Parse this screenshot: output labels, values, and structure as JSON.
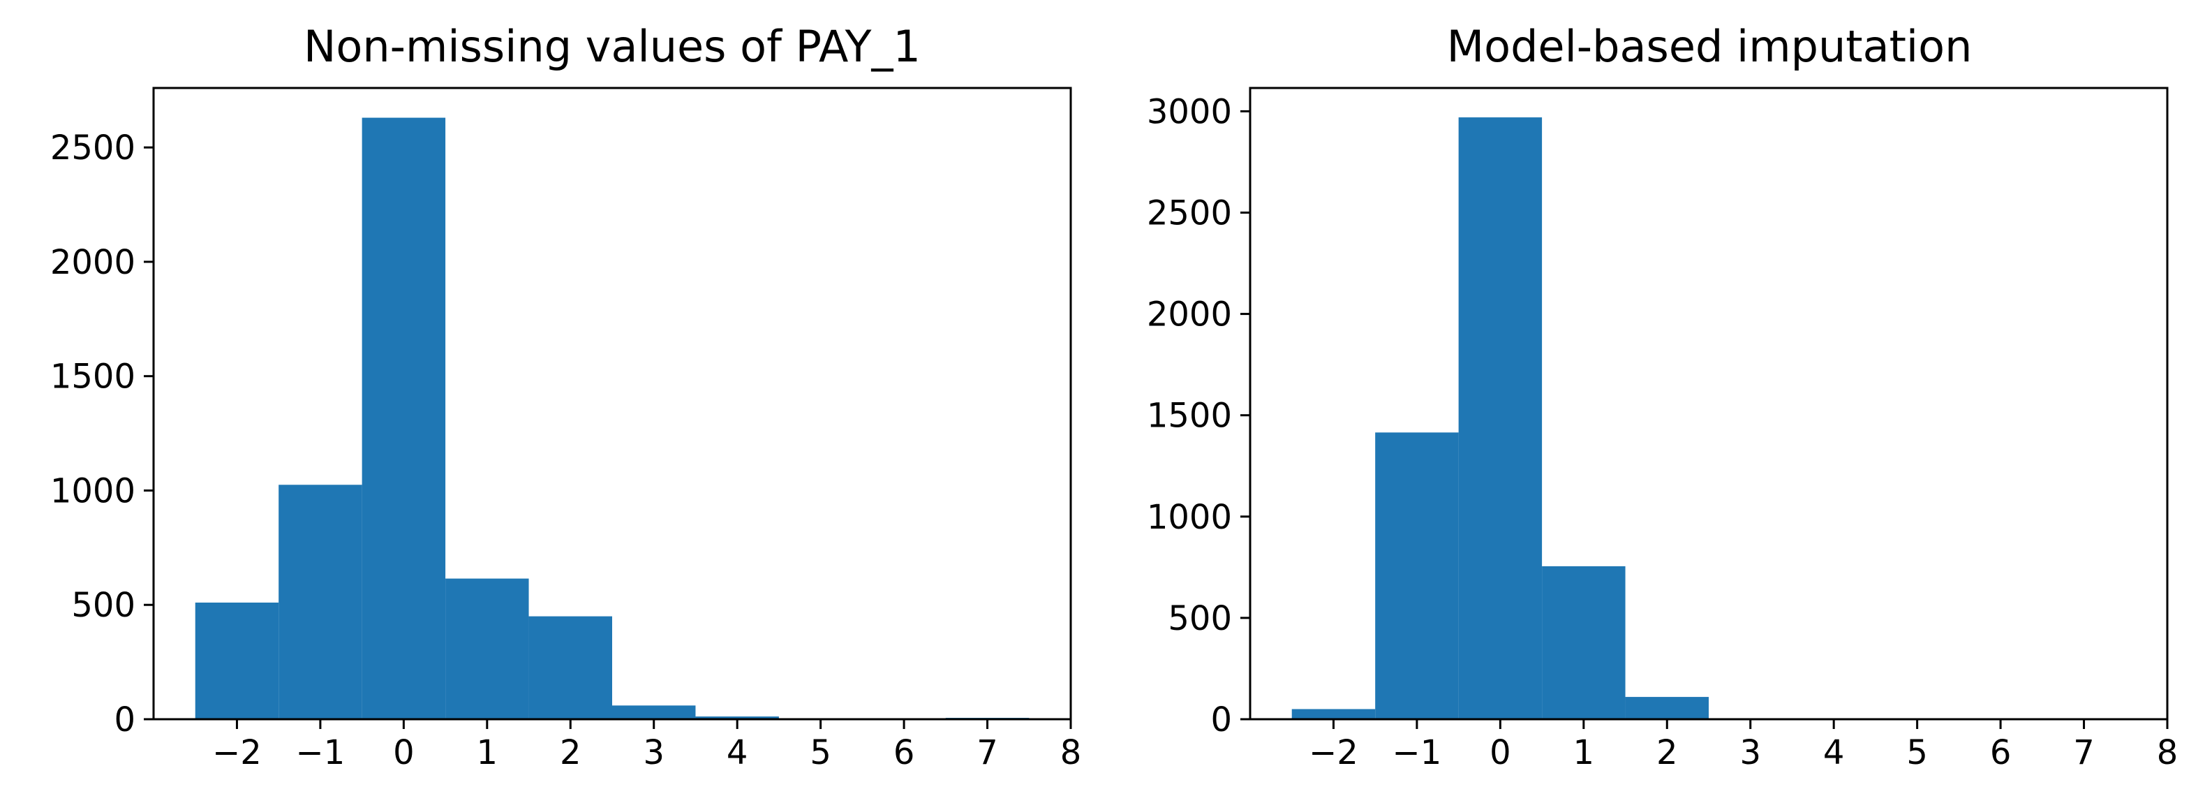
{
  "chart_data": [
    {
      "type": "bar",
      "title": "Non-missing values of PAY_1",
      "xlabel": "",
      "ylabel": "",
      "bins": [
        -2,
        -1,
        0,
        1,
        2,
        3,
        4,
        5,
        6,
        7
      ],
      "bin_width": 1,
      "values": [
        510,
        1025,
        2630,
        615,
        450,
        60,
        12,
        3,
        2,
        6
      ],
      "xlim": [
        -3.0,
        8.0
      ],
      "ylim": [
        0,
        2760
      ],
      "xticks": [
        -2,
        -1,
        0,
        1,
        2,
        3,
        4,
        5,
        6,
        7,
        8
      ],
      "xtick_labels": [
        "−2",
        "−1",
        "0",
        "1",
        "2",
        "3",
        "4",
        "5",
        "6",
        "7",
        "8"
      ],
      "yticks": [
        0,
        500,
        1000,
        1500,
        2000,
        2500
      ],
      "ytick_labels": [
        "0",
        "500",
        "1000",
        "1500",
        "2000",
        "2500"
      ],
      "color": "#1f77b4",
      "grid": false
    },
    {
      "type": "bar",
      "title": "Model-based imputation",
      "xlabel": "",
      "ylabel": "",
      "bins": [
        -2,
        -1,
        0,
        1,
        2,
        3,
        4,
        5,
        6,
        7
      ],
      "bin_width": 1,
      "values": [
        50,
        1415,
        2970,
        755,
        110,
        5,
        2,
        1,
        1,
        1
      ],
      "xlim": [
        -3.0,
        8.0
      ],
      "ylim": [
        0,
        3115
      ],
      "xticks": [
        -2,
        -1,
        0,
        1,
        2,
        3,
        4,
        5,
        6,
        7,
        8
      ],
      "xtick_labels": [
        "−2",
        "−1",
        "0",
        "1",
        "2",
        "3",
        "4",
        "5",
        "6",
        "7",
        "8"
      ],
      "yticks": [
        0,
        500,
        1000,
        1500,
        2000,
        2500,
        3000
      ],
      "ytick_labels": [
        "0",
        "500",
        "1000",
        "1500",
        "2000",
        "2500",
        "3000"
      ],
      "color": "#1f77b4",
      "grid": false
    }
  ]
}
